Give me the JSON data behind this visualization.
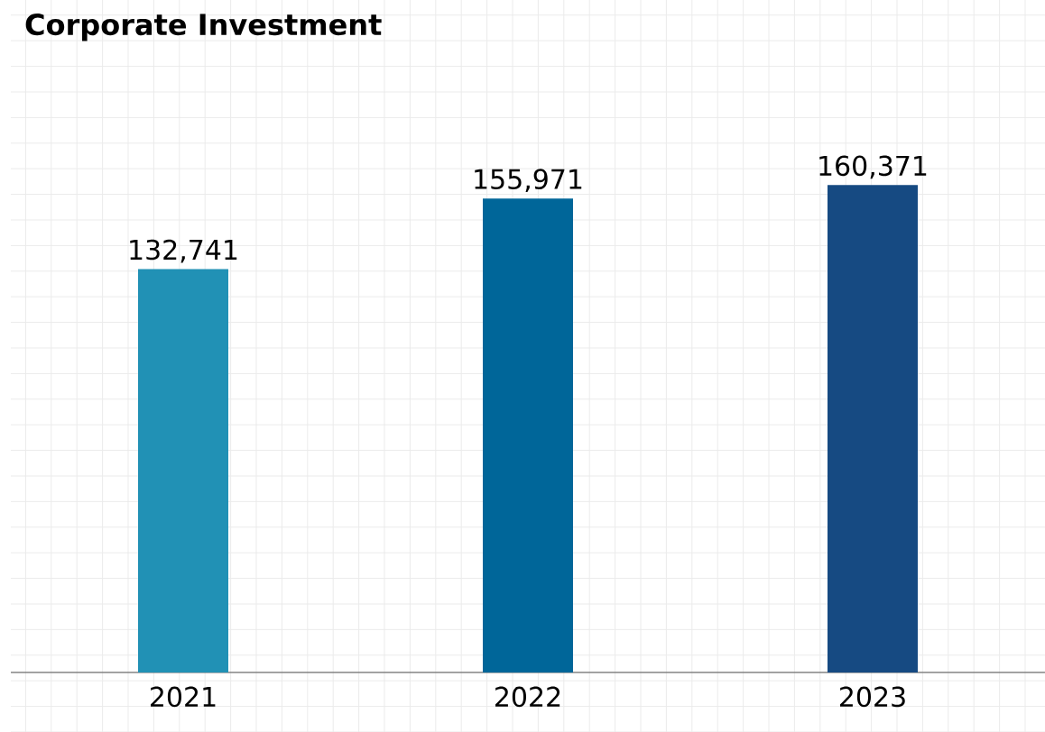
{
  "chart_data": {
    "type": "bar",
    "title": "Corporate Investment",
    "categories": [
      "2021",
      "2022",
      "2023"
    ],
    "values": [
      132741,
      155971,
      160371
    ],
    "colors": [
      "#2191b5",
      "#006699",
      "#164a82"
    ],
    "value_labels": [
      "132,741",
      "155,971",
      "160,371"
    ],
    "ylim": [
      0,
      175000
    ],
    "grid": true
  }
}
